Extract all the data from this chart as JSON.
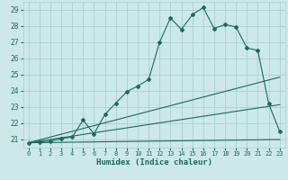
{
  "xlabel": "Humidex (Indice chaleur)",
  "bg_color": "#cce8e8",
  "grid_color": "#aad0d0",
  "line_color": "#1a6b5a",
  "xlim": [
    -0.5,
    23.5
  ],
  "ylim": [
    20.5,
    29.5
  ],
  "xticks": [
    0,
    1,
    2,
    3,
    4,
    5,
    6,
    7,
    8,
    9,
    10,
    11,
    12,
    13,
    14,
    15,
    16,
    17,
    18,
    19,
    20,
    21,
    22,
    23
  ],
  "yticks": [
    21,
    22,
    23,
    24,
    25,
    26,
    27,
    28,
    29
  ],
  "main_x": [
    0,
    1,
    2,
    3,
    4,
    5,
    6,
    7,
    8,
    9,
    10,
    11,
    12,
    13,
    14,
    15,
    16,
    17,
    18,
    19,
    20,
    21,
    22,
    23
  ],
  "main_y": [
    20.8,
    20.85,
    20.9,
    21.05,
    21.15,
    22.2,
    21.35,
    22.55,
    23.25,
    23.95,
    24.3,
    24.7,
    27.0,
    28.5,
    27.8,
    28.7,
    29.15,
    27.85,
    28.1,
    27.95,
    26.65,
    26.5,
    23.2,
    21.5
  ],
  "line1_x": [
    0,
    23
  ],
  "line1_y": [
    20.8,
    21.0
  ],
  "line2_x": [
    0,
    23
  ],
  "line2_y": [
    20.8,
    24.85
  ],
  "line3_x": [
    0,
    23
  ],
  "line3_y": [
    20.8,
    23.15
  ]
}
